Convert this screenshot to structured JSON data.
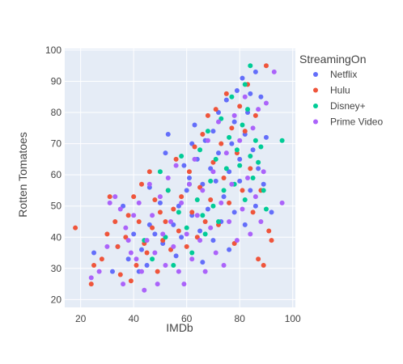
{
  "chart_data": {
    "type": "scatter",
    "title": "",
    "xlabel": "IMDb",
    "ylabel": "Rotten Tomatoes",
    "xlim": [
      14,
      101
    ],
    "ylim": [
      17.5,
      100.5
    ],
    "xticks": [
      20,
      40,
      60,
      80,
      100
    ],
    "yticks": [
      20,
      30,
      40,
      50,
      60,
      70,
      80,
      90,
      100
    ],
    "grid": true,
    "legend_title": "StreamingOn",
    "legend_position": "right",
    "series": [
      {
        "name": "Netflix",
        "color": "#636efa",
        "points": [
          [
            25,
            35
          ],
          [
            32,
            29
          ],
          [
            34,
            37
          ],
          [
            36,
            50
          ],
          [
            38,
            33
          ],
          [
            40,
            41
          ],
          [
            42,
            29
          ],
          [
            43,
            36
          ],
          [
            45,
            31
          ],
          [
            46,
            44
          ],
          [
            46,
            56
          ],
          [
            48,
            41
          ],
          [
            50,
            51
          ],
          [
            51,
            38
          ],
          [
            52,
            67
          ],
          [
            53,
            73
          ],
          [
            55,
            44
          ],
          [
            56,
            34
          ],
          [
            57,
            50
          ],
          [
            58,
            40
          ],
          [
            59,
            63
          ],
          [
            60,
            55
          ],
          [
            61,
            59
          ],
          [
            62,
            70
          ],
          [
            62,
            47
          ],
          [
            63,
            76
          ],
          [
            64,
            65
          ],
          [
            65,
            42
          ],
          [
            66,
            57
          ],
          [
            66,
            32
          ],
          [
            67,
            71
          ],
          [
            68,
            49
          ],
          [
            69,
            62
          ],
          [
            70,
            74
          ],
          [
            70,
            39
          ],
          [
            71,
            58
          ],
          [
            72,
            80
          ],
          [
            72,
            67
          ],
          [
            73,
            45
          ],
          [
            74,
            53
          ],
          [
            75,
            84
          ],
          [
            76,
            61
          ],
          [
            76,
            36
          ],
          [
            77,
            70
          ],
          [
            78,
            77
          ],
          [
            78,
            48
          ],
          [
            79,
            87
          ],
          [
            80,
            58
          ],
          [
            80,
            65
          ],
          [
            81,
            91
          ],
          [
            82,
            44
          ],
          [
            82,
            73
          ],
          [
            83,
            80
          ],
          [
            84,
            55
          ],
          [
            84,
            86
          ],
          [
            85,
            68
          ],
          [
            86,
            93
          ],
          [
            86,
            50
          ],
          [
            87,
            62
          ],
          [
            88,
            85
          ],
          [
            89,
            57
          ],
          [
            90,
            72
          ],
          [
            92,
            48
          ]
        ]
      },
      {
        "name": "Hulu",
        "color": "#ef553b",
        "points": [
          [
            18,
            43
          ],
          [
            24,
            25
          ],
          [
            25,
            31
          ],
          [
            28,
            33
          ],
          [
            30,
            41
          ],
          [
            31,
            53
          ],
          [
            33,
            45
          ],
          [
            34,
            37
          ],
          [
            35,
            28
          ],
          [
            37,
            40
          ],
          [
            38,
            47
          ],
          [
            39,
            26
          ],
          [
            40,
            53
          ],
          [
            41,
            31
          ],
          [
            42,
            45
          ],
          [
            43,
            57
          ],
          [
            44,
            38
          ],
          [
            45,
            35
          ],
          [
            46,
            61
          ],
          [
            47,
            43
          ],
          [
            48,
            52
          ],
          [
            49,
            29
          ],
          [
            50,
            48
          ],
          [
            51,
            39
          ],
          [
            52,
            45
          ],
          [
            53,
            55
          ],
          [
            54,
            36
          ],
          [
            55,
            49
          ],
          [
            56,
            65
          ],
          [
            57,
            42
          ],
          [
            58,
            53
          ],
          [
            60,
            37
          ],
          [
            61,
            61
          ],
          [
            62,
            48
          ],
          [
            63,
            69
          ],
          [
            64,
            40
          ],
          [
            65,
            56
          ],
          [
            66,
            73
          ],
          [
            67,
            45
          ],
          [
            68,
            79
          ],
          [
            69,
            52
          ],
          [
            70,
            64
          ],
          [
            71,
            81
          ],
          [
            72,
            44
          ],
          [
            73,
            70
          ],
          [
            74,
            59
          ],
          [
            75,
            86
          ],
          [
            76,
            51
          ],
          [
            77,
            75
          ],
          [
            78,
            38
          ],
          [
            79,
            67
          ],
          [
            80,
            82
          ],
          [
            81,
            55
          ],
          [
            82,
            74
          ],
          [
            83,
            89
          ],
          [
            84,
            62
          ],
          [
            85,
            48
          ],
          [
            86,
            79
          ],
          [
            87,
            33
          ],
          [
            88,
            55
          ],
          [
            89,
            31
          ],
          [
            90,
            95
          ],
          [
            91,
            42
          ],
          [
            92,
            39
          ]
        ]
      },
      {
        "name": "Disney+",
        "color": "#00cc96",
        "points": [
          [
            44,
            39
          ],
          [
            47,
            33
          ],
          [
            50,
            61
          ],
          [
            52,
            40
          ],
          [
            53,
            55
          ],
          [
            55,
            31
          ],
          [
            57,
            48
          ],
          [
            58,
            66
          ],
          [
            60,
            43
          ],
          [
            61,
            57
          ],
          [
            62,
            35
          ],
          [
            64,
            52
          ],
          [
            65,
            68
          ],
          [
            66,
            47
          ],
          [
            67,
            41
          ],
          [
            68,
            74
          ],
          [
            69,
            58
          ],
          [
            70,
            50
          ],
          [
            71,
            65
          ],
          [
            72,
            45
          ],
          [
            73,
            78
          ],
          [
            74,
            55
          ],
          [
            75,
            62
          ],
          [
            76,
            72
          ],
          [
            77,
            85
          ],
          [
            78,
            57
          ],
          [
            79,
            68
          ],
          [
            80,
            63
          ],
          [
            81,
            76
          ],
          [
            82,
            89
          ],
          [
            82,
            52
          ],
          [
            83,
            81
          ],
          [
            84,
            95
          ],
          [
            84,
            66
          ],
          [
            85,
            59
          ],
          [
            86,
            71
          ],
          [
            87,
            64
          ],
          [
            88,
            69
          ],
          [
            89,
            55
          ],
          [
            90,
            49
          ],
          [
            96,
            71
          ]
        ]
      },
      {
        "name": "Prime Video",
        "color": "#ab63fa",
        "points": [
          [
            24,
            27
          ],
          [
            27,
            29
          ],
          [
            30,
            37
          ],
          [
            31,
            51
          ],
          [
            33,
            53
          ],
          [
            35,
            49
          ],
          [
            36,
            25
          ],
          [
            37,
            43
          ],
          [
            38,
            39
          ],
          [
            39,
            35
          ],
          [
            40,
            47
          ],
          [
            41,
            33
          ],
          [
            42,
            51
          ],
          [
            43,
            29
          ],
          [
            44,
            23
          ],
          [
            45,
            39
          ],
          [
            46,
            57
          ],
          [
            47,
            47
          ],
          [
            48,
            35
          ],
          [
            49,
            25
          ],
          [
            50,
            53
          ],
          [
            51,
            41
          ],
          [
            52,
            31
          ],
          [
            53,
            59
          ],
          [
            54,
            45
          ],
          [
            55,
            37
          ],
          [
            56,
            63
          ],
          [
            57,
            29
          ],
          [
            58,
            51
          ],
          [
            59,
            25
          ],
          [
            60,
            41
          ],
          [
            61,
            57
          ],
          [
            62,
            33
          ],
          [
            63,
            65
          ],
          [
            64,
            47
          ],
          [
            65,
            39
          ],
          [
            66,
            55
          ],
          [
            67,
            29
          ],
          [
            68,
            71
          ],
          [
            69,
            43
          ],
          [
            70,
            61
          ],
          [
            71,
            35
          ],
          [
            72,
            77
          ],
          [
            73,
            51
          ],
          [
            74,
            31
          ],
          [
            75,
            67
          ],
          [
            76,
            45
          ],
          [
            77,
            57
          ],
          [
            78,
            79
          ],
          [
            79,
            39
          ],
          [
            80,
            71
          ],
          [
            81,
            49
          ],
          [
            82,
            85
          ],
          [
            83,
            59
          ],
          [
            84,
            41
          ],
          [
            85,
            75
          ],
          [
            86,
            53
          ],
          [
            87,
            81
          ],
          [
            88,
            45
          ],
          [
            89,
            61
          ],
          [
            90,
            83
          ],
          [
            93,
            93
          ],
          [
            96,
            51
          ]
        ]
      }
    ]
  }
}
